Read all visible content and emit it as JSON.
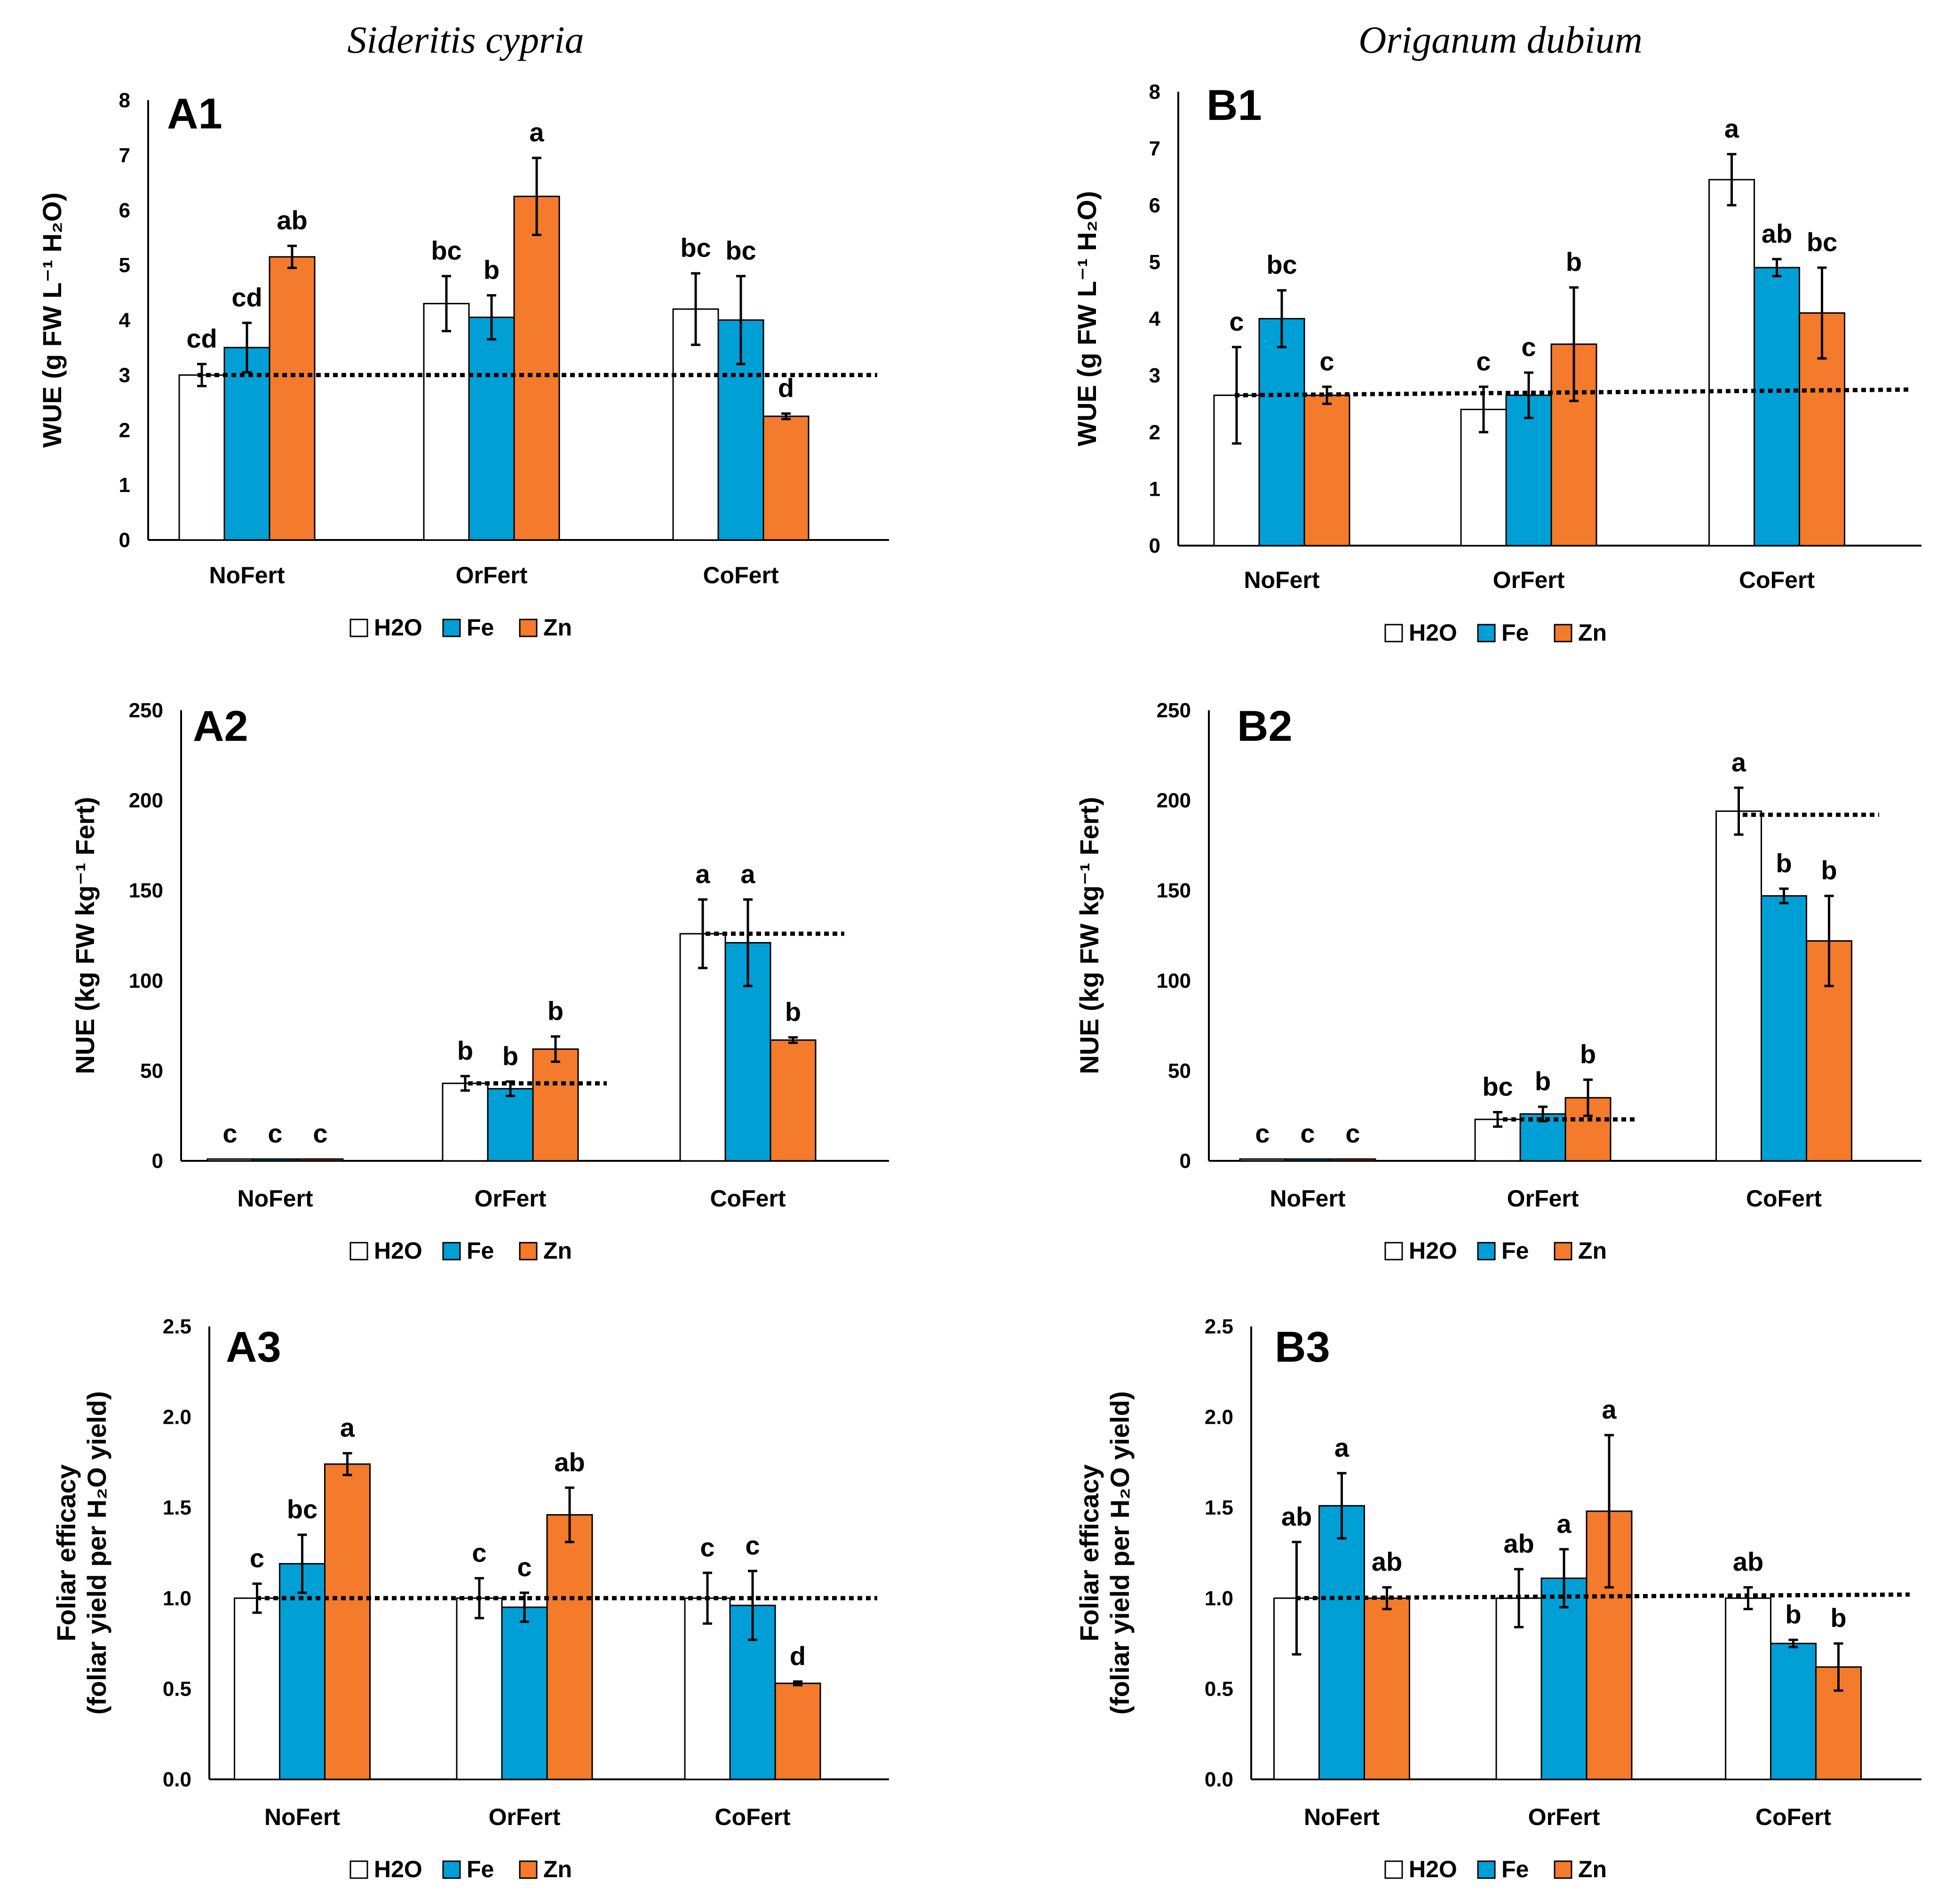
{
  "figure": {
    "titles": [
      {
        "text": "Sideritis cypria",
        "col": 0
      },
      {
        "text": "Origanum dubium",
        "col": 1
      }
    ],
    "legend": [
      "H2O",
      "Fe",
      "Zn"
    ],
    "colors": {
      "H2O": "#ffffff",
      "Fe": "#00a0d6",
      "Zn": "#f47a2c",
      "axis": "#000000"
    }
  },
  "chart_data": [
    {
      "id": "A1",
      "panel_label": "A1",
      "type": "bar",
      "categories": [
        "NoFert",
        "OrFert",
        "CoFert"
      ],
      "series": [
        {
          "name": "H2O",
          "values": [
            3.0,
            4.3,
            4.2
          ],
          "errors": [
            0.2,
            0.5,
            0.65
          ],
          "letters": [
            "cd",
            "bc",
            "bc"
          ]
        },
        {
          "name": "Fe",
          "values": [
            3.5,
            4.05,
            4.0
          ],
          "errors": [
            0.45,
            0.4,
            0.8
          ],
          "letters": [
            "cd",
            "b",
            "bc"
          ]
        },
        {
          "name": "Zn",
          "values": [
            5.15,
            6.25,
            2.25
          ],
          "errors": [
            0.2,
            0.7,
            0.05
          ],
          "letters": [
            "ab",
            "a",
            "d"
          ]
        }
      ],
      "ylim": [
        0,
        8
      ],
      "yticks": [
        "0",
        "1",
        "2",
        "3",
        "4",
        "5",
        "6",
        "7",
        "8"
      ],
      "ylabel": "WUE (g FW L⁻¹ H₂O)",
      "reference_lines": [
        {
          "y1": 3.0,
          "y2": 3.0,
          "span": "all"
        }
      ]
    },
    {
      "id": "B1",
      "panel_label": "B1",
      "type": "bar",
      "categories": [
        "NoFert",
        "OrFert",
        "CoFert"
      ],
      "series": [
        {
          "name": "H2O",
          "values": [
            2.65,
            2.4,
            6.45
          ],
          "errors": [
            0.85,
            0.4,
            0.45
          ],
          "letters": [
            "c",
            "c",
            "a"
          ]
        },
        {
          "name": "Fe",
          "values": [
            4.0,
            2.65,
            4.9
          ],
          "errors": [
            0.5,
            0.4,
            0.15
          ],
          "letters": [
            "bc",
            "c",
            "ab"
          ]
        },
        {
          "name": "Zn",
          "values": [
            2.65,
            3.55,
            4.1
          ],
          "errors": [
            0.15,
            1.0,
            0.8
          ],
          "letters": [
            "c",
            "b",
            "bc"
          ]
        }
      ],
      "ylim": [
        0,
        8
      ],
      "yticks": [
        "0",
        "1",
        "2",
        "3",
        "4",
        "5",
        "6",
        "7",
        "8"
      ],
      "ylabel": "WUE (g FW L⁻¹ H₂O)",
      "reference_lines": [
        {
          "y1": 2.65,
          "y2": 2.75,
          "span": "all"
        }
      ]
    },
    {
      "id": "A2",
      "panel_label": "A2",
      "type": "bar",
      "categories": [
        "NoFert",
        "OrFert",
        "CoFert"
      ],
      "series": [
        {
          "name": "H2O",
          "values": [
            1,
            43,
            126
          ],
          "errors": [
            0,
            4,
            19
          ],
          "letters": [
            "c",
            "b",
            "a"
          ]
        },
        {
          "name": "Fe",
          "values": [
            1,
            40,
            121
          ],
          "errors": [
            0,
            4,
            24
          ],
          "letters": [
            "c",
            "b",
            "a"
          ]
        },
        {
          "name": "Zn",
          "values": [
            1,
            62,
            67
          ],
          "errors": [
            0,
            7,
            1.5
          ],
          "letters": [
            "c",
            "b",
            "b"
          ]
        }
      ],
      "ylim": [
        0,
        250
      ],
      "yticks": [
        "0",
        "50",
        "100",
        "150",
        "200",
        "250"
      ],
      "ylabel": "NUE (kg FW kg⁻¹ Fert)",
      "reference_lines": [
        {
          "y1": 43,
          "y2": 43,
          "span": "OrFert"
        },
        {
          "y1": 126,
          "y2": 126,
          "span": "CoFert"
        }
      ]
    },
    {
      "id": "B2",
      "panel_label": "B2",
      "type": "bar",
      "categories": [
        "NoFert",
        "OrFert",
        "CoFert"
      ],
      "series": [
        {
          "name": "H2O",
          "values": [
            1,
            23,
            194
          ],
          "errors": [
            0,
            4,
            13
          ],
          "letters": [
            "c",
            "bc",
            "a"
          ]
        },
        {
          "name": "Fe",
          "values": [
            1,
            26,
            147
          ],
          "errors": [
            0,
            4,
            4
          ],
          "letters": [
            "c",
            "b",
            "b"
          ]
        },
        {
          "name": "Zn",
          "values": [
            1,
            35,
            122
          ],
          "errors": [
            0,
            10,
            25
          ],
          "letters": [
            "c",
            "b",
            "b"
          ]
        }
      ],
      "ylim": [
        0,
        250
      ],
      "yticks": [
        "0",
        "50",
        "100",
        "150",
        "200",
        "250"
      ],
      "ylabel": "NUE (kg FW kg⁻¹ Fert)",
      "reference_lines": [
        {
          "y1": 23,
          "y2": 23,
          "span": "OrFert"
        },
        {
          "y1": 192,
          "y2": 192,
          "span": "CoFert"
        }
      ]
    },
    {
      "id": "A3",
      "panel_label": "A3",
      "type": "bar",
      "categories": [
        "NoFert",
        "OrFert",
        "CoFert"
      ],
      "series": [
        {
          "name": "H2O",
          "values": [
            1.0,
            1.0,
            1.0
          ],
          "errors": [
            0.08,
            0.11,
            0.14
          ],
          "letters": [
            "c",
            "c",
            "c"
          ]
        },
        {
          "name": "Fe",
          "values": [
            1.19,
            0.95,
            0.96
          ],
          "errors": [
            0.16,
            0.08,
            0.19
          ],
          "letters": [
            "bc",
            "c",
            "c"
          ]
        },
        {
          "name": "Zn",
          "values": [
            1.74,
            1.46,
            0.53
          ],
          "errors": [
            0.06,
            0.15,
            0.01
          ],
          "letters": [
            "a",
            "ab",
            "d"
          ]
        }
      ],
      "ylim": [
        0,
        2.5
      ],
      "yticks": [
        "0.0",
        "0.5",
        "1.0",
        "1.5",
        "2.0",
        "2.5"
      ],
      "ylabel": [
        "Foliar efficacy",
        "(foliar yield per H₂O yield)"
      ],
      "reference_lines": [
        {
          "y1": 1.0,
          "y2": 1.0,
          "span": "all"
        }
      ]
    },
    {
      "id": "B3",
      "panel_label": "B3",
      "type": "bar",
      "categories": [
        "NoFert",
        "OrFert",
        "CoFert"
      ],
      "series": [
        {
          "name": "H2O",
          "values": [
            1.0,
            1.0,
            1.0
          ],
          "errors": [
            0.31,
            0.16,
            0.06
          ],
          "letters": [
            "ab",
            "ab",
            "ab"
          ]
        },
        {
          "name": "Fe",
          "values": [
            1.51,
            1.11,
            0.75
          ],
          "errors": [
            0.18,
            0.16,
            0.02
          ],
          "letters": [
            "a",
            "a",
            "b"
          ]
        },
        {
          "name": "Zn",
          "values": [
            1.0,
            1.48,
            0.62
          ],
          "errors": [
            0.06,
            0.42,
            0.13
          ],
          "letters": [
            "ab",
            "a",
            "b"
          ]
        }
      ],
      "ylim": [
        0,
        2.5
      ],
      "yticks": [
        "0.0",
        "0.5",
        "1.0",
        "1.5",
        "2.0",
        "2.5"
      ],
      "ylabel": [
        "Foliar efficacy",
        "(foliar yield per H₂O yield)"
      ],
      "reference_lines": [
        {
          "y1": 1.0,
          "y2": 1.02,
          "span": "all"
        }
      ]
    }
  ]
}
